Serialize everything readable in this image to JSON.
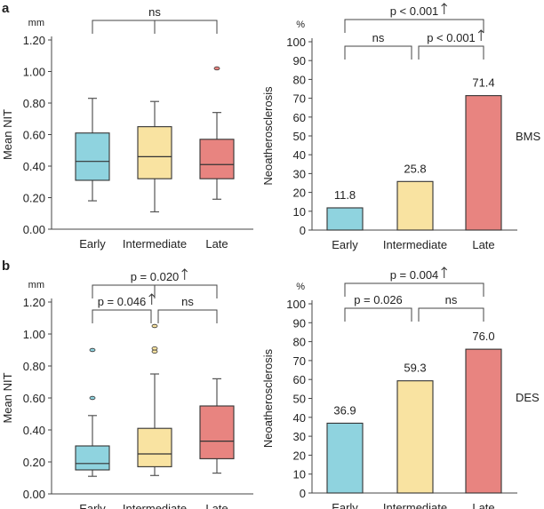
{
  "colors": {
    "early": "#8fd3df",
    "intermediate": "#f9e3a1",
    "late": "#e88480",
    "stroke": "#333333"
  },
  "chart_data": [
    {
      "panel": "a",
      "type": "box",
      "unit": "mm",
      "ylabel": "Mean NIT",
      "ylim": [
        0,
        1.2
      ],
      "yticks": [
        "0.00",
        "0.20",
        "0.40",
        "0.60",
        "0.80",
        "1.00",
        "1.20"
      ],
      "categories": [
        "Early",
        "Intermediate",
        "Late"
      ],
      "boxes": [
        {
          "min": 0.18,
          "q1": 0.31,
          "median": 0.43,
          "q3": 0.61,
          "max": 0.83,
          "outliers": []
        },
        {
          "min": 0.11,
          "q1": 0.32,
          "median": 0.46,
          "q3": 0.65,
          "max": 0.81,
          "outliers": []
        },
        {
          "min": 0.19,
          "q1": 0.32,
          "median": 0.41,
          "q3": 0.57,
          "max": 0.74,
          "outliers": [
            1.02
          ]
        }
      ],
      "comparisons": [
        {
          "from": 0,
          "to": 2,
          "label": "ns",
          "arrow": false
        }
      ]
    },
    {
      "panel": "",
      "type": "bar",
      "unit": "%",
      "ylabel": "Neoatherosclerosis",
      "group_label": "BMS",
      "ylim": [
        0,
        100
      ],
      "yticks": [
        "0",
        "10",
        "20",
        "30",
        "40",
        "50",
        "60",
        "70",
        "80",
        "90",
        "100"
      ],
      "categories": [
        "Early",
        "Intermediate",
        "Late"
      ],
      "values": [
        11.8,
        25.8,
        71.4
      ],
      "value_labels": [
        "11.8",
        "25.8",
        "71.4"
      ],
      "comparisons": [
        {
          "from": 0,
          "to": 2,
          "label": "p < 0.001",
          "arrow": true
        },
        {
          "from": 0,
          "to": 1,
          "label": "ns",
          "arrow": false
        },
        {
          "from": 1,
          "to": 2,
          "label": "p < 0.001",
          "arrow": true
        }
      ]
    },
    {
      "panel": "b",
      "type": "box",
      "unit": "mm",
      "ylabel": "Mean NIT",
      "ylim": [
        0,
        1.2
      ],
      "yticks": [
        "0.00",
        "0.20",
        "0.40",
        "0.60",
        "0.80",
        "1.00",
        "1.20"
      ],
      "categories": [
        "Early",
        "Intermediate",
        "Late"
      ],
      "boxes": [
        {
          "min": 0.11,
          "q1": 0.15,
          "median": 0.19,
          "q3": 0.3,
          "max": 0.49,
          "outliers": [
            0.6,
            0.9
          ]
        },
        {
          "min": 0.115,
          "q1": 0.17,
          "median": 0.25,
          "q3": 0.41,
          "max": 0.75,
          "outliers": [
            0.89,
            0.91,
            1.05
          ]
        },
        {
          "min": 0.13,
          "q1": 0.22,
          "median": 0.33,
          "q3": 0.55,
          "max": 0.72,
          "outliers": []
        }
      ],
      "comparisons": [
        {
          "from": 0,
          "to": 2,
          "label": "p = 0.020",
          "arrow": true
        },
        {
          "from": 0,
          "to": 1,
          "label": "p = 0.046",
          "arrow": true
        },
        {
          "from": 1,
          "to": 2,
          "label": "ns",
          "arrow": false
        }
      ]
    },
    {
      "panel": "",
      "type": "bar",
      "unit": "%",
      "ylabel": "Neoatherosclerosis",
      "group_label": "DES",
      "ylim": [
        0,
        100
      ],
      "yticks": [
        "0",
        "10",
        "20",
        "30",
        "40",
        "50",
        "60",
        "70",
        "80",
        "90",
        "100"
      ],
      "categories": [
        "Early",
        "Intermediate",
        "Late"
      ],
      "values": [
        36.9,
        59.3,
        76.0
      ],
      "value_labels": [
        "36.9",
        "59.3",
        "76.0"
      ],
      "comparisons": [
        {
          "from": 0,
          "to": 2,
          "label": "p = 0.004",
          "arrow": true
        },
        {
          "from": 0,
          "to": 1,
          "label": "p = 0.026",
          "arrow": false
        },
        {
          "from": 1,
          "to": 2,
          "label": "ns",
          "arrow": false
        }
      ]
    }
  ]
}
